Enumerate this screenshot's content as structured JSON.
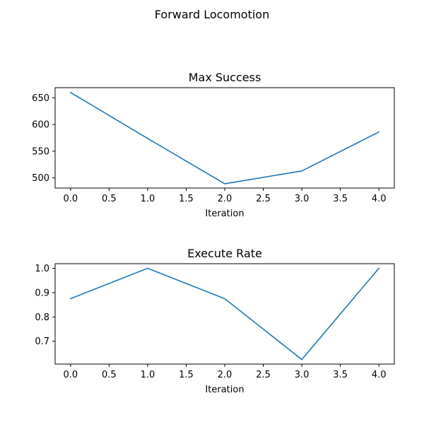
{
  "figure": {
    "suptitle": "Forward Locomotion"
  },
  "chart_data": [
    {
      "type": "line",
      "title": "Max Success",
      "xlabel": "Iteration",
      "ylabel": "",
      "x": [
        0,
        1,
        2,
        3,
        4
      ],
      "series": [
        {
          "values": [
            660,
            574,
            489,
            513,
            586
          ],
          "color": "#1f77b4"
        }
      ],
      "xlim": [
        -0.2,
        4.2
      ],
      "ylim": [
        481,
        669
      ],
      "xticks": [
        0.0,
        0.5,
        1.0,
        1.5,
        2.0,
        2.5,
        3.0,
        3.5,
        4.0
      ],
      "xtick_labels": [
        "0.0",
        "0.5",
        "1.0",
        "1.5",
        "2.0",
        "2.5",
        "3.0",
        "3.5",
        "4.0"
      ],
      "yticks": [
        500,
        550,
        600,
        650
      ],
      "ytick_labels": [
        "500",
        "550",
        "600",
        "650"
      ],
      "grid": false,
      "legend": "none"
    },
    {
      "type": "line",
      "title": "Execute Rate",
      "xlabel": "Iteration",
      "ylabel": "",
      "x": [
        0,
        1,
        2,
        3,
        4
      ],
      "series": [
        {
          "values": [
            0.875,
            1.0,
            0.875,
            0.625,
            1.0
          ],
          "color": "#1f77b4"
        }
      ],
      "xlim": [
        -0.2,
        4.2
      ],
      "ylim": [
        0.6063,
        1.0188
      ],
      "xticks": [
        0.0,
        0.5,
        1.0,
        1.5,
        2.0,
        2.5,
        3.0,
        3.5,
        4.0
      ],
      "xtick_labels": [
        "0.0",
        "0.5",
        "1.0",
        "1.5",
        "2.0",
        "2.5",
        "3.0",
        "3.5",
        "4.0"
      ],
      "yticks": [
        0.7,
        0.8,
        0.9,
        1.0
      ],
      "ytick_labels": [
        "0.7",
        "0.8",
        "0.9",
        "1.0"
      ],
      "grid": false,
      "legend": "none"
    }
  ]
}
